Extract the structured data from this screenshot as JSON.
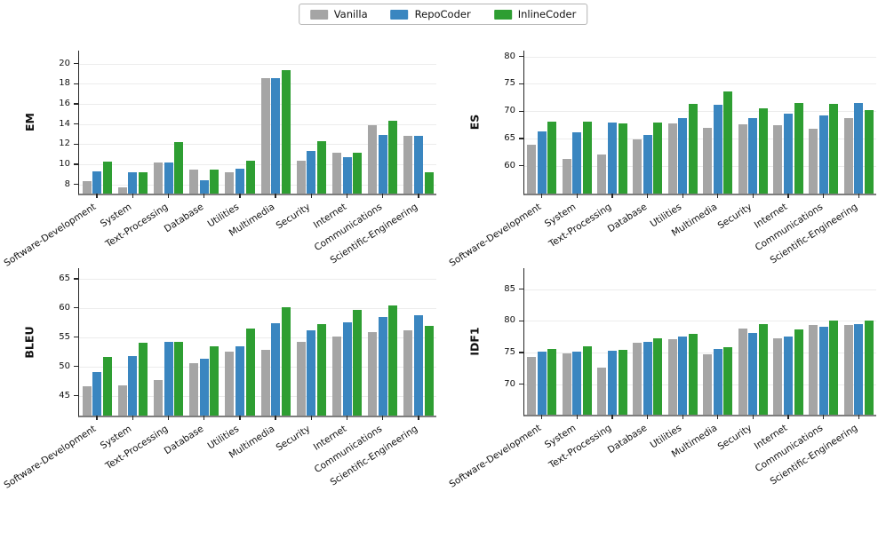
{
  "legend": {
    "items": [
      {
        "label": "Vanilla",
        "color": "#a5a5a5"
      },
      {
        "label": "RepoCoder",
        "color": "#3a86c0"
      },
      {
        "label": "InlineCoder",
        "color": "#2e9e32"
      }
    ]
  },
  "chart_data": [
    {
      "type": "bar",
      "title": "",
      "xlabel": "",
      "ylabel": "EM",
      "ylim": [
        7.1,
        21.3
      ],
      "yticks": [
        8,
        10,
        12,
        14,
        16,
        18,
        20
      ],
      "grid": true,
      "legend_position": "top-center",
      "categories": [
        "Software-Development",
        "System",
        "Text-Processing",
        "Database",
        "Utilities",
        "Multimedia",
        "Security",
        "Internet",
        "Communications",
        "Scientific-Engineering"
      ],
      "series": [
        {
          "name": "Vanilla",
          "values": [
            8.3,
            7.7,
            10.2,
            9.5,
            9.2,
            18.6,
            10.4,
            11.2,
            13.9,
            12.8
          ]
        },
        {
          "name": "RepoCoder",
          "values": [
            9.3,
            9.2,
            10.2,
            8.4,
            9.6,
            18.6,
            11.3,
            10.7,
            12.9,
            12.8
          ]
        },
        {
          "name": "InlineCoder",
          "values": [
            10.3,
            9.2,
            12.2,
            9.5,
            10.4,
            19.4,
            12.3,
            11.2,
            14.3,
            9.2
          ]
        }
      ]
    },
    {
      "type": "bar",
      "title": "",
      "xlabel": "",
      "ylabel": "ES",
      "ylim": [
        54.9,
        81.1
      ],
      "yticks": [
        60,
        65,
        70,
        75,
        80
      ],
      "grid": true,
      "legend_position": "top-center",
      "categories": [
        "Software-Development",
        "System",
        "Text-Processing",
        "Database",
        "Utilities",
        "Multimedia",
        "Security",
        "Internet",
        "Communications",
        "Scientific-Engineering"
      ],
      "series": [
        {
          "name": "Vanilla",
          "values": [
            63.9,
            61.2,
            62.1,
            64.8,
            67.7,
            67.0,
            67.6,
            67.4,
            66.8,
            68.8
          ]
        },
        {
          "name": "RepoCoder",
          "values": [
            66.3,
            66.1,
            67.9,
            65.7,
            68.7,
            71.2,
            68.8,
            69.5,
            69.2,
            71.5
          ]
        },
        {
          "name": "InlineCoder",
          "values": [
            68.1,
            68.1,
            67.7,
            68.0,
            71.4,
            73.6,
            70.6,
            71.5,
            71.3,
            70.2
          ]
        }
      ]
    },
    {
      "type": "bar",
      "title": "",
      "xlabel": "",
      "ylabel": "BLEU",
      "ylim": [
        41.6,
        66.8
      ],
      "yticks": [
        45,
        50,
        55,
        60,
        65
      ],
      "grid": true,
      "legend_position": "top-center",
      "categories": [
        "Software-Development",
        "System",
        "Text-Processing",
        "Database",
        "Utilities",
        "Multimedia",
        "Security",
        "Internet",
        "Communications",
        "Scientific-Engineering"
      ],
      "series": [
        {
          "name": "Vanilla",
          "values": [
            46.6,
            46.8,
            47.7,
            50.5,
            52.6,
            52.9,
            54.2,
            55.1,
            55.9,
            56.2
          ]
        },
        {
          "name": "RepoCoder",
          "values": [
            49.0,
            51.8,
            54.2,
            51.3,
            53.5,
            57.4,
            56.1,
            57.6,
            58.4,
            58.8
          ]
        },
        {
          "name": "InlineCoder",
          "values": [
            51.6,
            54.1,
            54.2,
            53.4,
            56.5,
            60.1,
            57.2,
            59.7,
            60.4,
            56.9
          ]
        }
      ]
    },
    {
      "type": "bar",
      "title": "",
      "xlabel": "",
      "ylabel": "IDF1",
      "ylim": [
        65.2,
        88.3
      ],
      "yticks": [
        70,
        75,
        80,
        85
      ],
      "grid": true,
      "legend_position": "top-center",
      "categories": [
        "Software-Development",
        "System",
        "Text-Processing",
        "Database",
        "Utilities",
        "Multimedia",
        "Security",
        "Internet",
        "Communications",
        "Scientific-Engineering"
      ],
      "series": [
        {
          "name": "Vanilla",
          "values": [
            74.3,
            74.9,
            72.6,
            76.6,
            77.1,
            74.7,
            78.8,
            77.3,
            79.3,
            79.4
          ]
        },
        {
          "name": "RepoCoder",
          "values": [
            75.1,
            75.1,
            75.3,
            76.7,
            77.5,
            75.6,
            78.1,
            77.5,
            79.0,
            79.5
          ]
        },
        {
          "name": "InlineCoder",
          "values": [
            75.6,
            76.0,
            75.4,
            77.2,
            77.9,
            75.9,
            79.5,
            78.6,
            80.0,
            80.1
          ]
        }
      ]
    }
  ]
}
